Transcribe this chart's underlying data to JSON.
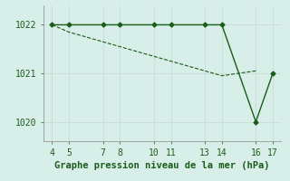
{
  "x_main": [
    4,
    5,
    7,
    8,
    10,
    11,
    13,
    14,
    16,
    17
  ],
  "y_main": [
    1022.0,
    1022.0,
    1022.0,
    1022.0,
    1022.0,
    1022.0,
    1022.0,
    1022.0,
    1020.0,
    1021.0
  ],
  "x_dash": [
    4,
    5,
    7,
    8,
    10,
    11,
    13,
    14,
    16
  ],
  "y_dash": [
    1022.0,
    1021.85,
    1021.65,
    1021.55,
    1021.35,
    1021.25,
    1021.05,
    1020.95,
    1021.05
  ],
  "line_color": "#1a5c1a",
  "marker": "D",
  "marker_size": 2.5,
  "background_color": "#d8eee8",
  "grid_color": "#c8ddd8",
  "xlabel": "Graphe pression niveau de la mer (hPa)",
  "xlabel_color": "#1a5c1a",
  "xlabel_fontsize": 7.5,
  "tick_color": "#1a5c1a",
  "tick_fontsize": 7,
  "xlim": [
    3.5,
    17.5
  ],
  "ylim": [
    1019.6,
    1022.4
  ],
  "xticks": [
    4,
    5,
    7,
    8,
    10,
    11,
    13,
    14,
    16,
    17
  ],
  "yticks": [
    1020,
    1021,
    1022
  ],
  "figsize": [
    3.2,
    2.0
  ],
  "dpi": 100
}
